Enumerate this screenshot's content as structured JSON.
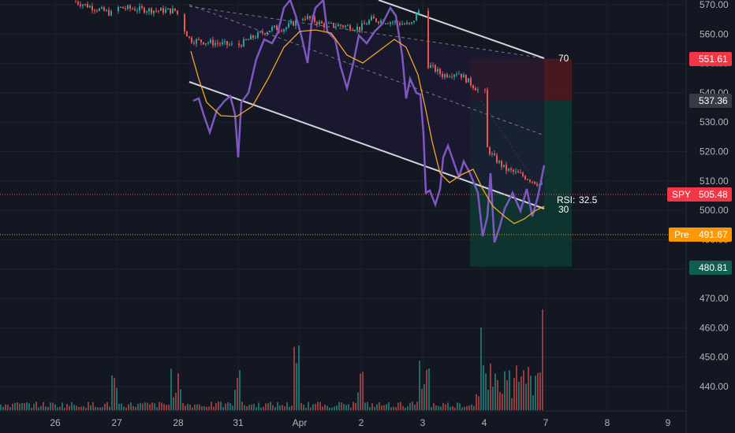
{
  "instrument": "SPY",
  "colors": {
    "background": "#131722",
    "up": "#26a69a",
    "down": "#ef5350",
    "rsi_line": "#7e57c2",
    "rsi_ma": "#f5a623",
    "channel": "#d1d4dc",
    "axis_text": "#b2b5be",
    "stop_zone": "#5b1a22",
    "target_zone": "#0f3b33",
    "price_badge": "#f23645",
    "premarket_badge": "#ff9800",
    "gray_badge": "#363a45",
    "target_badge": "#0f5e4f"
  },
  "price_axis": {
    "ticks": [
      "570.00",
      "560.00",
      "550.00",
      "540.00",
      "530.00",
      "520.00",
      "510.00",
      "500.00",
      "490.00",
      "480.00",
      "470.00",
      "460.00",
      "450.00",
      "440.00"
    ]
  },
  "time_axis": {
    "labels": [
      "26",
      "27",
      "28",
      "31",
      "Apr",
      "2",
      "3",
      "4",
      "7",
      "8",
      "9"
    ]
  },
  "badges": {
    "stop": "551.61",
    "entry": "537.36",
    "last_symbol": "SPY",
    "last": "505.48",
    "premarket_label": "Pre",
    "premarket": "491.67",
    "target": "480.81"
  },
  "rsi": {
    "label": "RSI:",
    "value": "32.5",
    "upper_level": "70",
    "lower_level": "30"
  },
  "chart_data": {
    "type": "candlestick",
    "symbol": "SPY",
    "y_range": [
      435,
      573
    ],
    "x_labels": [
      "26",
      "27",
      "28",
      "31",
      "Apr",
      "2",
      "3",
      "4",
      "7",
      "8",
      "9"
    ],
    "series": [
      {
        "name": "price",
        "approx_closes": [
          570,
          568,
          569,
          567,
          562,
          558,
          558,
          556,
          563,
          562,
          558,
          561,
          564,
          563,
          565,
          562,
          545,
          541,
          540,
          538,
          515,
          512,
          510,
          505.48
        ]
      },
      {
        "name": "RSI",
        "approx_values": [
          45,
          40,
          50,
          42,
          55,
          60,
          72,
          55,
          58,
          66,
          58,
          70,
          62,
          48,
          30,
          28,
          22,
          30,
          28,
          20,
          25,
          30,
          35,
          32.5
        ]
      }
    ],
    "levels": {
      "stop": 551.61,
      "entry": 537.36,
      "last": 505.48,
      "premarket": 491.67,
      "target": 480.81
    }
  }
}
